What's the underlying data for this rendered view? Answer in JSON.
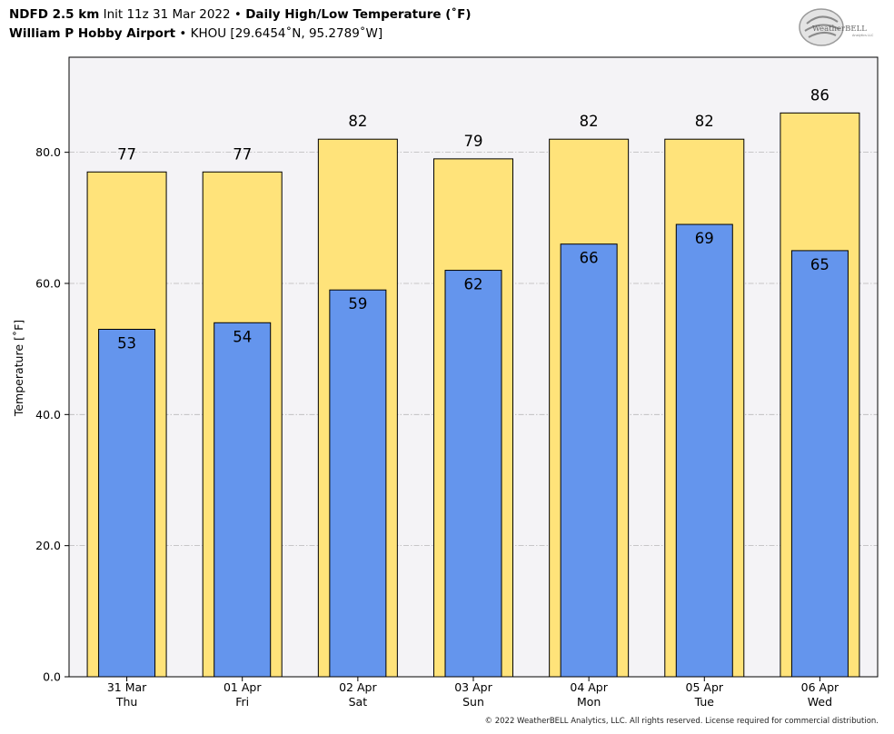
{
  "header": {
    "line1_model": "NDFD 2.5 km",
    "line1_init": "Init 11z 31 Mar 2022",
    "line1_sep": "•",
    "line1_product": "Daily High/Low Temperature (˚F)",
    "line2_station": "William P Hobby Airport",
    "line2_sep": "•",
    "line2_location": "KHOU [29.6454˚N, 95.2789˚W]"
  },
  "logo": {
    "text": "WeatherBELL",
    "subtext": "Analytics LLC"
  },
  "footer": {
    "copyright": "© 2022 WeatherBELL Analytics, LLC. All rights reserved. License required for commercial distribution."
  },
  "colors": {
    "high_bar": "#FFE37A",
    "low_bar": "#6495ED",
    "plot_bg": "#F4F3F6",
    "grid": "#b8b8b8"
  },
  "chart_data": {
    "type": "bar",
    "title": "Daily High/Low Temperature (˚F)",
    "xlabel": "",
    "ylabel": "Temperature [˚F]",
    "ylim": [
      0,
      94.5
    ],
    "yticks": [
      "0.0",
      "20.0",
      "40.0",
      "60.0",
      "80.0"
    ],
    "ytick_values": [
      0,
      20,
      40,
      60,
      80
    ],
    "grid": true,
    "categories": [
      [
        "31 Mar",
        "Thu"
      ],
      [
        "01 Apr",
        "Fri"
      ],
      [
        "02 Apr",
        "Sat"
      ],
      [
        "03 Apr",
        "Sun"
      ],
      [
        "04 Apr",
        "Mon"
      ],
      [
        "05 Apr",
        "Tue"
      ],
      [
        "06 Apr",
        "Wed"
      ]
    ],
    "series": [
      {
        "key": "high",
        "values": [
          77,
          77,
          82,
          79,
          82,
          82,
          86
        ]
      },
      {
        "key": "low",
        "values": [
          53,
          54,
          59,
          62,
          66,
          69,
          65
        ]
      }
    ]
  }
}
